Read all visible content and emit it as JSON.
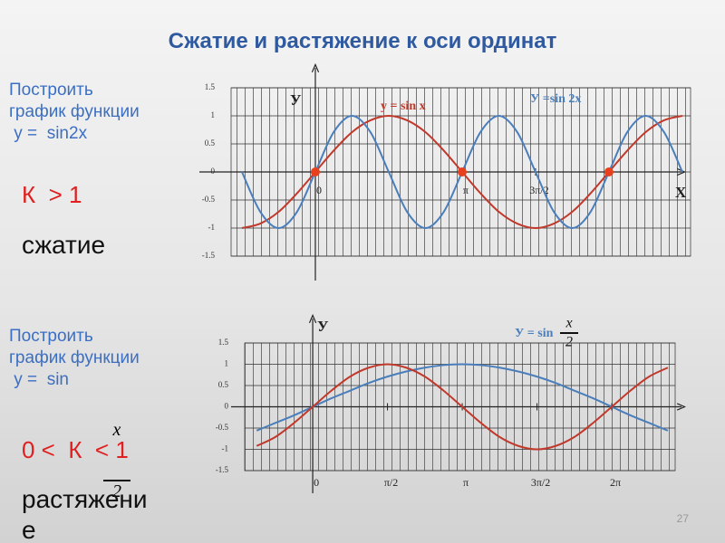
{
  "title": "Сжатие и растяжение к оси ординат",
  "sections": [
    {
      "task": "Построить\nграфик функции\n у =  sin2x",
      "condition": "К  > 1",
      "result": "сжатие"
    },
    {
      "task": "Построить\nграфик функции\n у =  sin",
      "fraction": {
        "numerator": "x",
        "denominator": "2"
      },
      "condition": "0 <  К  < 1",
      "result": "растяжени\nе"
    }
  ],
  "page_number": "27",
  "chart_data": [
    {
      "type": "line",
      "y_axis_label": "У",
      "x_axis_label": "Х",
      "x": [
        -0.5,
        -0.375,
        -0.25,
        -0.125,
        0,
        0.125,
        0.25,
        0.375,
        0.5,
        0.625,
        0.75,
        0.875,
        1,
        1.125,
        1.25,
        1.375,
        1.5,
        1.625,
        1.75,
        1.875,
        2,
        2.125,
        2.25,
        2.375,
        2.5
      ],
      "series": [
        {
          "name": "y = sin x",
          "color": "#c0392b",
          "values": [
            -1,
            -0.92,
            -0.71,
            -0.38,
            0,
            0.38,
            0.71,
            0.92,
            1,
            0.92,
            0.71,
            0.38,
            0,
            -0.38,
            -0.71,
            -0.92,
            -1,
            -0.92,
            -0.71,
            -0.38,
            0,
            0.38,
            0.71,
            0.92,
            1
          ]
        },
        {
          "name": "У =sin 2x",
          "color": "#4a7ebb",
          "values": [
            0,
            -0.71,
            -1,
            -0.71,
            0,
            0.71,
            1,
            0.71,
            0,
            -0.71,
            -1,
            -0.71,
            0,
            0.71,
            1,
            0.71,
            0,
            -0.71,
            -1,
            -0.71,
            0,
            0.71,
            1,
            0.71,
            0
          ]
        }
      ],
      "points": {
        "color": "#e8401c",
        "x": [
          0,
          1,
          2
        ],
        "values": [
          0,
          0,
          0
        ]
      },
      "xlim": [
        -0.574,
        2.556
      ],
      "ylim": [
        -1.5,
        1.5
      ],
      "xticks": [
        {
          "value": 0,
          "label": "0"
        },
        {
          "value": 1,
          "label": "π"
        },
        {
          "value": 1.5,
          "label": "3π/2"
        }
      ],
      "yticks": [
        -1.5,
        -1,
        -0.5,
        0,
        0.5,
        1,
        1.5
      ],
      "grid": true
    },
    {
      "type": "line",
      "y_axis_label": "У",
      "x": [
        -0.375,
        -0.25,
        -0.125,
        0,
        0.125,
        0.25,
        0.375,
        0.5,
        0.625,
        0.75,
        0.875,
        1,
        1.125,
        1.25,
        1.375,
        1.5,
        1.625,
        1.75,
        1.875,
        2,
        2.125,
        2.25,
        2.375
      ],
      "series": [
        {
          "name": "У = sin",
          "color": "#4a7ebb",
          "values": [
            -0.56,
            -0.38,
            -0.2,
            0,
            0.2,
            0.38,
            0.56,
            0.71,
            0.83,
            0.92,
            0.98,
            1,
            0.98,
            0.92,
            0.83,
            0.71,
            0.56,
            0.38,
            0.2,
            0,
            -0.2,
            -0.38,
            -0.56
          ]
        },
        {
          "name": "y = sin x",
          "color": "#c0392b",
          "values": [
            -0.92,
            -0.71,
            -0.38,
            0,
            0.38,
            0.71,
            0.92,
            1,
            0.92,
            0.71,
            0.38,
            0,
            -0.38,
            -0.71,
            -0.92,
            -1,
            -0.92,
            -0.71,
            -0.38,
            0,
            0.38,
            0.71,
            0.92
          ]
        }
      ],
      "xlim": [
        -0.455,
        2.424
      ],
      "ylim": [
        -1.5,
        1.5
      ],
      "xticks": [
        {
          "value": 0,
          "label": "0"
        },
        {
          "value": 0.5,
          "label": "π/2"
        },
        {
          "value": 1,
          "label": "π"
        },
        {
          "value": 1.5,
          "label": "3π/2"
        },
        {
          "value": 2,
          "label": "2π"
        }
      ],
      "yticks": [
        -1.5,
        -1,
        -0.5,
        0,
        0.5,
        1,
        1.5
      ],
      "grid": true
    }
  ]
}
